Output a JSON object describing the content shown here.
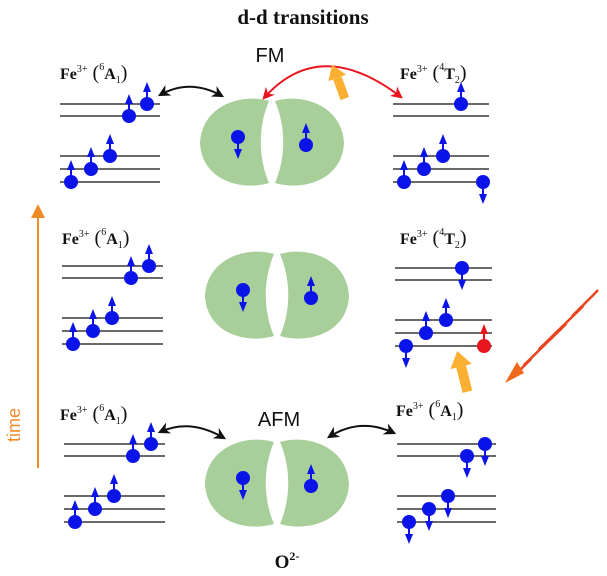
{
  "title": "d-d transitions",
  "time_label": "time",
  "oxygen_label": "O",
  "oxygen_charge": "2-",
  "colors": {
    "spin": "#0a14e8",
    "excited_spin": "#e8141e",
    "orbital": "#a8cf9a",
    "time_arrow": "#f08c28",
    "photon_arrow": "#fbb034",
    "coupling_arrow": "#111111",
    "excited_coupling_arrow": "#e8141e"
  },
  "rows": [
    {
      "magnetic_label": "FM",
      "left_ion": {
        "element": "Fe",
        "charge": "3+",
        "multiplicity": "6",
        "term": "A",
        "term_sub": "1"
      },
      "right_ion": {
        "element": "Fe",
        "charge": "3+",
        "multiplicity": "4",
        "term": "T",
        "term_sub": "2"
      }
    },
    {
      "magnetic_label": "",
      "left_ion": {
        "element": "Fe",
        "charge": "3+",
        "multiplicity": "6",
        "term": "A",
        "term_sub": "1"
      },
      "right_ion": {
        "element": "Fe",
        "charge": "3+",
        "multiplicity": "4",
        "term": "T",
        "term_sub": "2"
      }
    },
    {
      "magnetic_label": "AFM",
      "left_ion": {
        "element": "Fe",
        "charge": "3+",
        "multiplicity": "6",
        "term": "A",
        "term_sub": "1"
      },
      "right_ion": {
        "element": "Fe",
        "charge": "3+",
        "multiplicity": "6",
        "term": "A",
        "term_sub": "1"
      }
    }
  ]
}
